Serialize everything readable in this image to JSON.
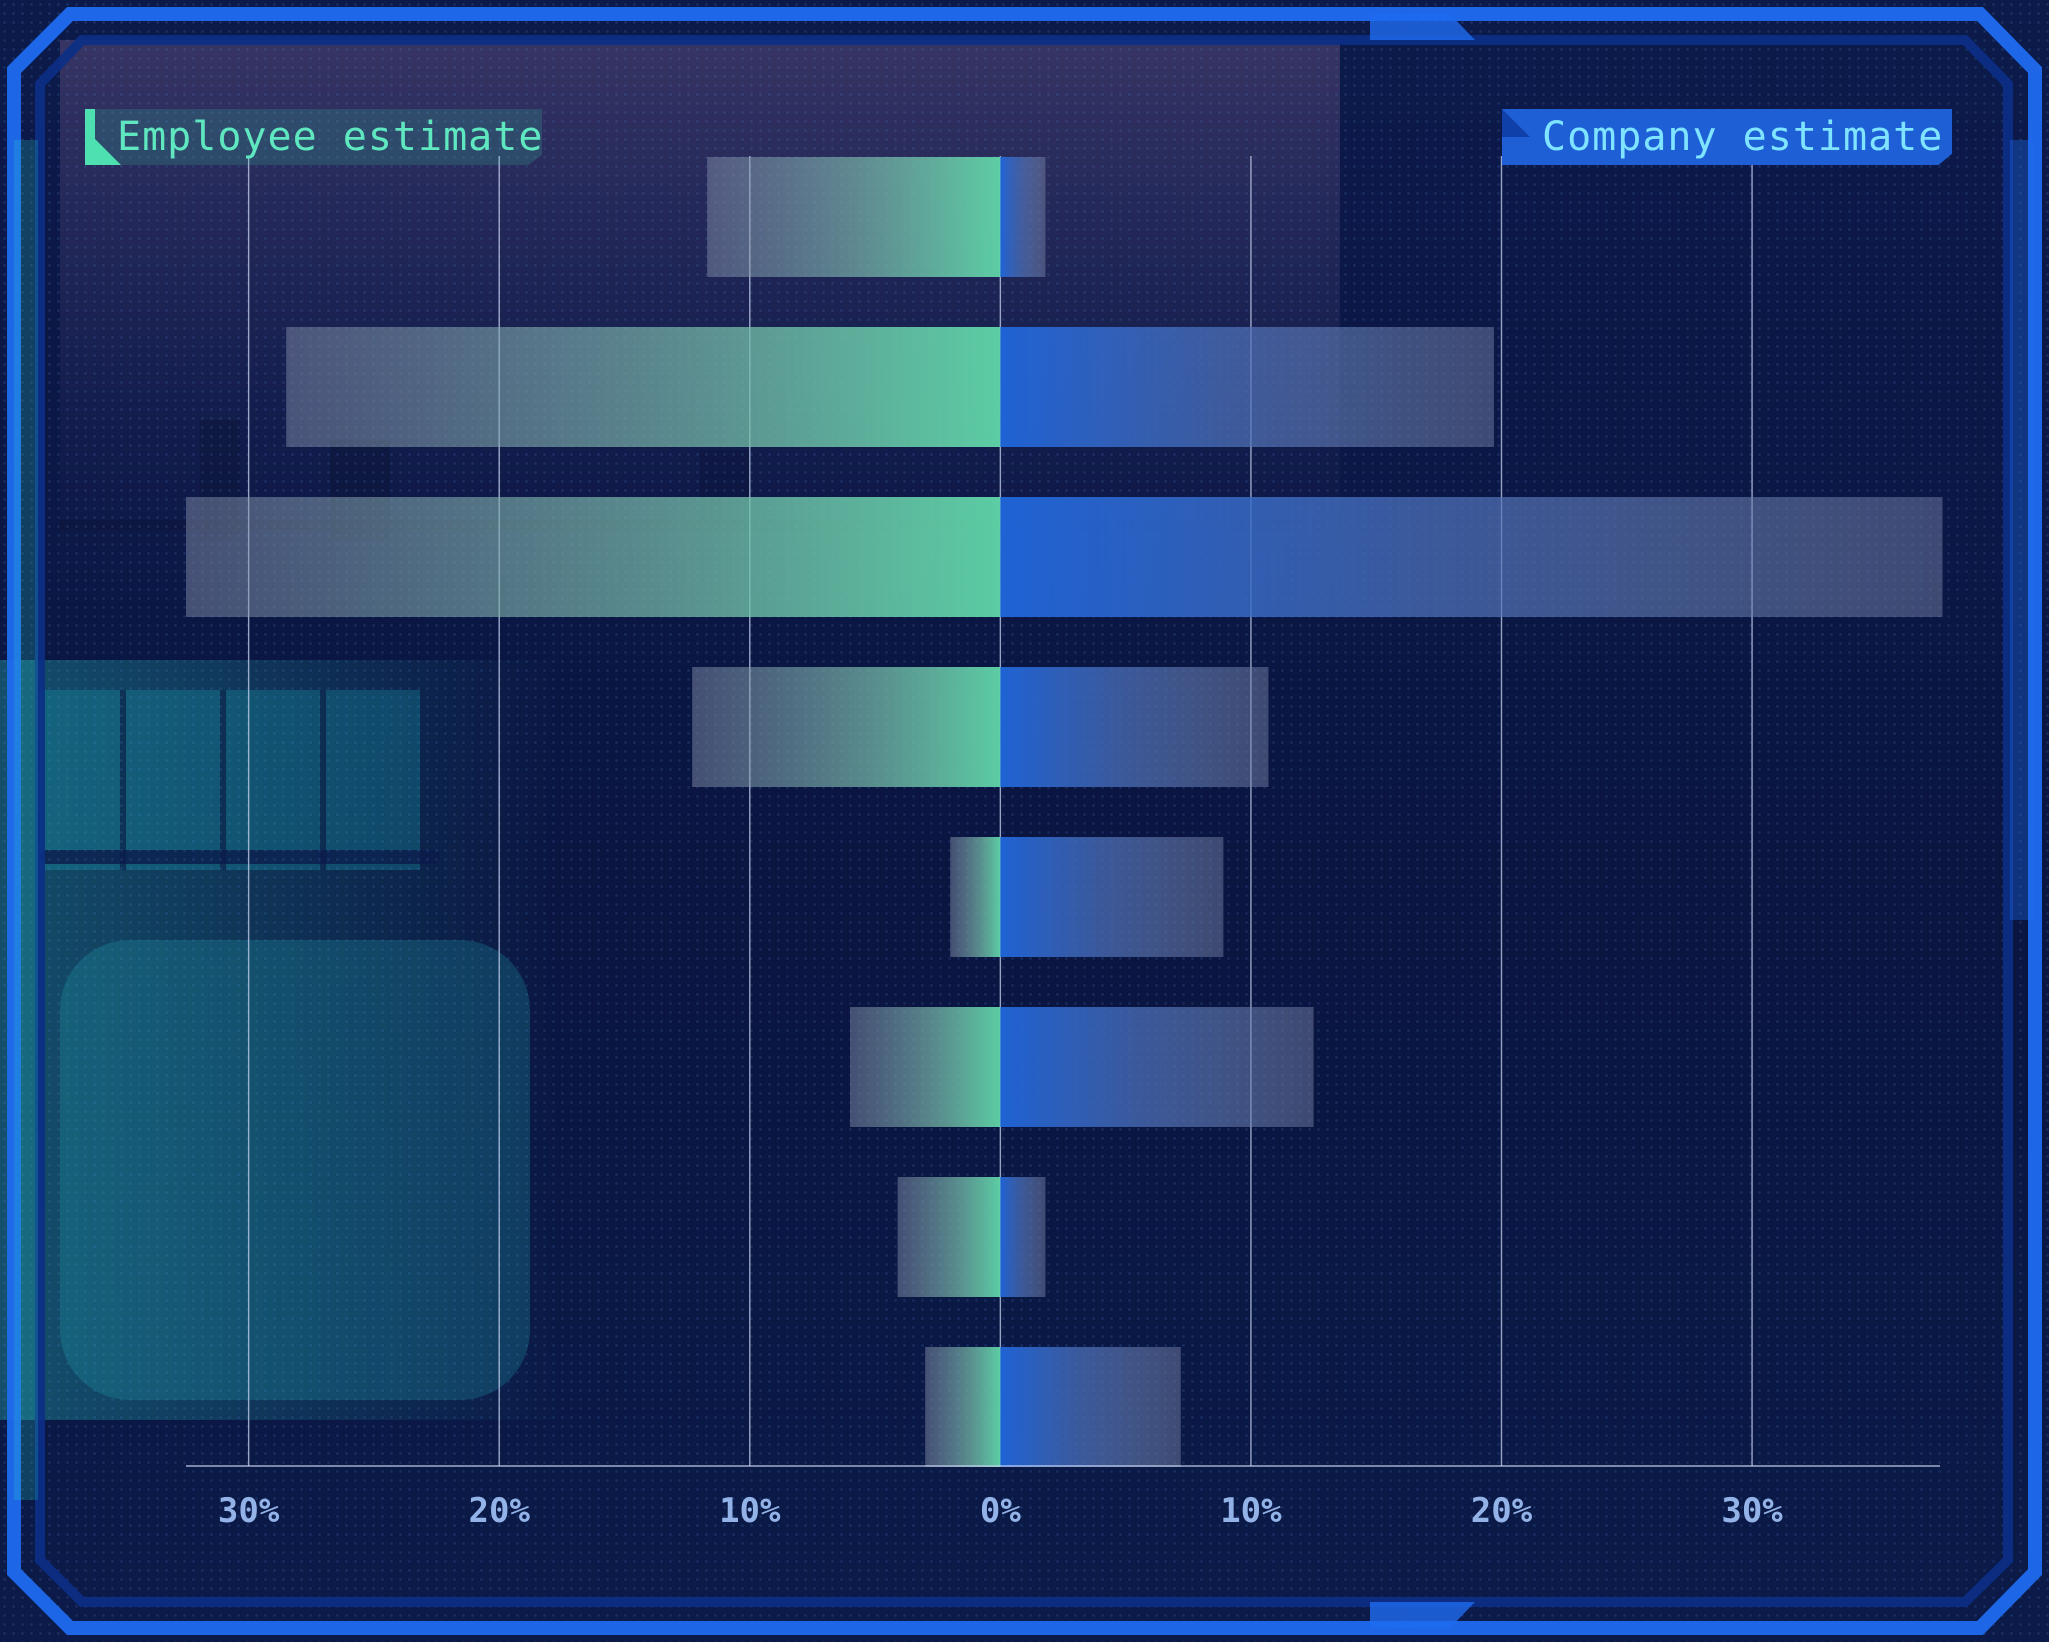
{
  "legend": {
    "employee_label": "Employee estimate",
    "company_label": "Company estimate"
  },
  "colors": {
    "employee": "#5fd6a8",
    "company": "#1f66dc",
    "grid": "#c8d4f0",
    "tick_text": "#93b3e8"
  },
  "chart_data": {
    "type": "bar",
    "orientation": "horizontal-diverging",
    "title": "",
    "xlabel": "",
    "ylabel": "",
    "x_ticks": [
      "30%",
      "20%",
      "10%",
      "0%",
      "10%",
      "20%",
      "30%"
    ],
    "x_tick_values": [
      -30,
      -20,
      -10,
      0,
      10,
      20,
      30
    ],
    "xlim": [
      -32.5,
      37.5
    ],
    "grid": true,
    "legend_position": "top",
    "categories": [
      "",
      "",
      "",
      "",
      "",
      "",
      "",
      ""
    ],
    "series": [
      {
        "name": "Employee estimate",
        "side": "left",
        "values": [
          11.7,
          28.5,
          32.5,
          12.3,
          2.0,
          6.0,
          4.1,
          3.0
        ]
      },
      {
        "name": "Company estimate",
        "side": "right",
        "values": [
          1.8,
          19.7,
          37.6,
          10.7,
          8.9,
          12.5,
          1.8,
          7.2
        ]
      }
    ]
  }
}
